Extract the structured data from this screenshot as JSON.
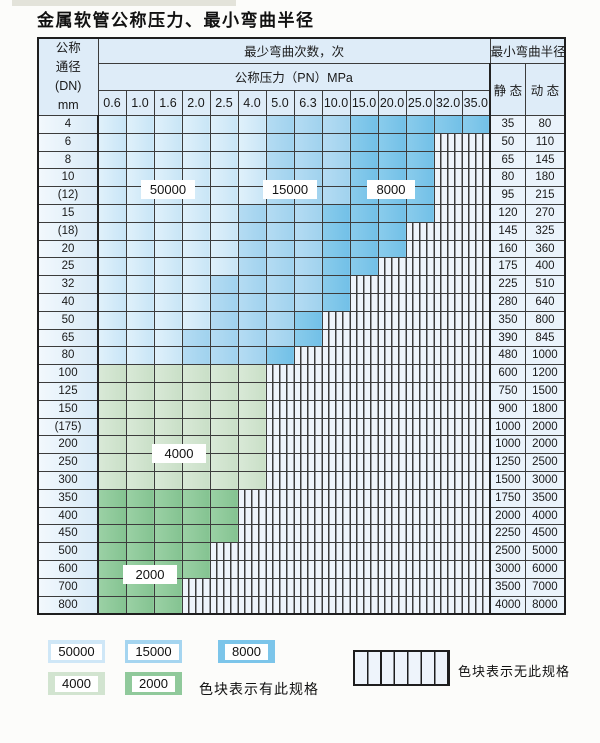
{
  "title": "金属软管公称压力、最小弯曲半径",
  "table": {
    "header": {
      "dn_lines": [
        "公称",
        "通径",
        "(DN)",
        "mm"
      ],
      "cycles_title": "最少弯曲次数，次",
      "pressure_title": "公称压力（PN）MPa",
      "pressures": [
        "0.6",
        "1.0",
        "1.6",
        "2.0",
        "2.5",
        "4.0",
        "5.0",
        "6.3",
        "10.0",
        "15.0",
        "20.0",
        "25.0",
        "32.0",
        "35.0"
      ],
      "radius_title": "最小弯曲半径",
      "static_label": "静 态",
      "dynamic_label": "动 态"
    },
    "cell_code_legend": {
      "1": "bend-cycles-50000",
      "2": "bend-cycles-15000",
      "3": "bend-cycles-8000",
      "4": "bend-cycles-4000",
      "5": "bend-cycles-2000",
      "0": "no-spec-hatched"
    },
    "rows": [
      {
        "dn": "4",
        "cells": "11111122233333",
        "static": "35",
        "dynamic": "80"
      },
      {
        "dn": "6",
        "cells": "11111122233300",
        "static": "50",
        "dynamic": "110"
      },
      {
        "dn": "8",
        "cells": "11111122233300",
        "static": "65",
        "dynamic": "145"
      },
      {
        "dn": "10",
        "cells": "11111122233300",
        "static": "80",
        "dynamic": "180"
      },
      {
        "dn": "(12)",
        "cells": "11111122233300",
        "static": "95",
        "dynamic": "215"
      },
      {
        "dn": "15",
        "cells": "11111222333300",
        "static": "120",
        "dynamic": "270"
      },
      {
        "dn": "(18)",
        "cells": "11111222333000",
        "static": "145",
        "dynamic": "325"
      },
      {
        "dn": "20",
        "cells": "11111222333000",
        "static": "160",
        "dynamic": "360"
      },
      {
        "dn": "25",
        "cells": "11111222330000",
        "static": "175",
        "dynamic": "400"
      },
      {
        "dn": "32",
        "cells": "11112222300000",
        "static": "225",
        "dynamic": "510"
      },
      {
        "dn": "40",
        "cells": "11112222300000",
        "static": "280",
        "dynamic": "640"
      },
      {
        "dn": "50",
        "cells": "11112223000000",
        "static": "350",
        "dynamic": "800"
      },
      {
        "dn": "65",
        "cells": "11122223000000",
        "static": "390",
        "dynamic": "845"
      },
      {
        "dn": "80",
        "cells": "11122230000000",
        "static": "480",
        "dynamic": "1000"
      },
      {
        "dn": "100",
        "cells": "44444400000000",
        "static": "600",
        "dynamic": "1200"
      },
      {
        "dn": "125",
        "cells": "44444400000000",
        "static": "750",
        "dynamic": "1500"
      },
      {
        "dn": "150",
        "cells": "44444400000000",
        "static": "900",
        "dynamic": "1800"
      },
      {
        "dn": "(175)",
        "cells": "44444400000000",
        "static": "1000",
        "dynamic": "2000"
      },
      {
        "dn": "200",
        "cells": "44444400000000",
        "static": "1000",
        "dynamic": "2000"
      },
      {
        "dn": "250",
        "cells": "44444400000000",
        "static": "1250",
        "dynamic": "2500"
      },
      {
        "dn": "300",
        "cells": "44444400000000",
        "static": "1500",
        "dynamic": "3000"
      },
      {
        "dn": "350",
        "cells": "55555000000000",
        "static": "1750",
        "dynamic": "3500"
      },
      {
        "dn": "400",
        "cells": "55555000000000",
        "static": "2000",
        "dynamic": "4000"
      },
      {
        "dn": "450",
        "cells": "55555000000000",
        "static": "2250",
        "dynamic": "4500"
      },
      {
        "dn": "500",
        "cells": "55550000000000",
        "static": "2500",
        "dynamic": "5000"
      },
      {
        "dn": "600",
        "cells": "55550000000000",
        "static": "3000",
        "dynamic": "6000"
      },
      {
        "dn": "700",
        "cells": "55500000000000",
        "static": "3500",
        "dynamic": "7000"
      },
      {
        "dn": "800",
        "cells": "55500000000000",
        "static": "4000",
        "dynamic": "8000"
      }
    ]
  },
  "overlay_labels": [
    {
      "id": "ov-50000",
      "text": "50000"
    },
    {
      "id": "ov-15000",
      "text": "15000"
    },
    {
      "id": "ov-8000",
      "text": "8000"
    },
    {
      "id": "ov-4000",
      "text": "4000"
    },
    {
      "id": "ov-2000",
      "text": "2000"
    }
  ],
  "legend": {
    "items": [
      {
        "label": "50000",
        "color": "#cfe7f7"
      },
      {
        "label": "15000",
        "color": "#a5d5f0"
      },
      {
        "label": "8000",
        "color": "#7cc5ea"
      },
      {
        "label": "4000",
        "color": "#d2e4d0"
      },
      {
        "label": "2000",
        "color": "#90c99b"
      }
    ],
    "present_note": "色块表示有此规格",
    "absent_note": "色块表示无此规格"
  },
  "colors": {
    "blue_50000": [
      "#e0f1fb",
      "#c8e5f6"
    ],
    "blue_15000": [
      "#b5dcf3",
      "#a0d2ee"
    ],
    "blue_8000": [
      "#8accec",
      "#72c0e7"
    ],
    "green_4000": [
      "#d9e9d7",
      "#c9dfc7"
    ],
    "green_2000": [
      "#9bd1a5",
      "#84c391"
    ],
    "hatch_bg": "#eef4fb",
    "grid_line": "#3c3c3c",
    "header_bg": "#deecf8"
  }
}
